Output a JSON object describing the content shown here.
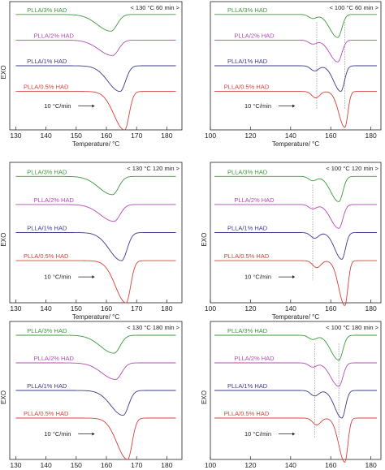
{
  "chart_data": [
    {
      "type": "line",
      "annotation": "< 130 °C  60 min >",
      "xlabel": "Temperature/ °C",
      "ylabel": "EXO",
      "xlim": [
        128,
        185
      ],
      "xticks": [
        130,
        140,
        150,
        160,
        170,
        180
      ],
      "rate_label": "10 °C/min",
      "series": [
        {
          "name": "PLLA/3% HAD",
          "color": "#3a9a3a",
          "baseline": 0.1,
          "melt_peaks": [
            {
              "t": 161.5,
              "depth": 0.13,
              "left_width": 4.5,
              "right_width": 2.0
            }
          ],
          "cc_dips": []
        },
        {
          "name": "PLLA/2% HAD",
          "color": "#b54ab5",
          "baseline": 0.3,
          "melt_peaks": [
            {
              "t": 162.0,
              "depth": 0.12,
              "left_width": 4.5,
              "right_width": 2.0
            }
          ],
          "cc_dips": []
        },
        {
          "name": "PLLA/1% HAD",
          "color": "#3a3a8c",
          "baseline": 0.5,
          "melt_peaks": [
            {
              "t": 164.5,
              "depth": 0.2,
              "left_width": 4.0,
              "right_width": 1.8
            }
          ],
          "cc_dips": []
        },
        {
          "name": "PLLA/0.5% HAD",
          "color": "#d9403a",
          "baseline": 0.7,
          "melt_peaks": [
            {
              "t": 166.0,
              "depth": 0.3,
              "left_width": 3.5,
              "right_width": 1.5
            }
          ],
          "cc_dips": []
        }
      ]
    },
    {
      "type": "line",
      "annotation": "< 100 °C  60 min >",
      "xlabel": "Temperature/ °C",
      "ylabel": "",
      "xlim": [
        100,
        185
      ],
      "xticks": [
        100,
        120,
        140,
        160,
        180
      ],
      "rate_label": "10 °C/min",
      "guide_temps": [
        153,
        167
      ],
      "series": [
        {
          "name": "PLLA/3% HAD",
          "color": "#3a9a3a",
          "baseline": 0.1,
          "melt_peaks": [
            {
              "t": 163.5,
              "depth": 0.18,
              "left_width": 4.0,
              "right_width": 2.0
            }
          ],
          "cc_dips": [
            {
              "t": 151,
              "depth": 0.03,
              "width": 2.0
            }
          ]
        },
        {
          "name": "PLLA/2% HAD",
          "color": "#b54ab5",
          "baseline": 0.3,
          "melt_peaks": [
            {
              "t": 163.5,
              "depth": 0.17,
              "left_width": 4.0,
              "right_width": 2.0
            }
          ],
          "cc_dips": [
            {
              "t": 151,
              "depth": 0.03,
              "width": 2.0
            }
          ]
        },
        {
          "name": "PLLA/1% HAD",
          "color": "#3a3a8c",
          "baseline": 0.5,
          "melt_peaks": [
            {
              "t": 165.0,
              "depth": 0.2,
              "left_width": 3.5,
              "right_width": 1.8
            }
          ],
          "cc_dips": [
            {
              "t": 152,
              "depth": 0.04,
              "width": 2.0
            }
          ]
        },
        {
          "name": "PLLA/0.5% HAD",
          "color": "#d9403a",
          "baseline": 0.7,
          "melt_peaks": [
            {
              "t": 167.0,
              "depth": 0.28,
              "left_width": 3.0,
              "right_width": 1.5
            }
          ],
          "cc_dips": [
            {
              "t": 152.5,
              "depth": 0.05,
              "width": 2.0
            }
          ]
        }
      ]
    },
    {
      "type": "line",
      "annotation": "< 130 °C  120 min >",
      "xlabel": "Temperature/ °C",
      "ylabel": "EXO",
      "xlim": [
        128,
        185
      ],
      "xticks": [
        130,
        140,
        150,
        160,
        170,
        180
      ],
      "rate_label": "10 °C/min",
      "series": [
        {
          "name": "PLLA/3% HAD",
          "color": "#3a9a3a",
          "baseline": 0.1,
          "melt_peaks": [
            {
              "t": 162.0,
              "depth": 0.13,
              "left_width": 4.5,
              "right_width": 2.0
            }
          ],
          "cc_dips": []
        },
        {
          "name": "PLLA/2% HAD",
          "color": "#b54ab5",
          "baseline": 0.3,
          "melt_peaks": [
            {
              "t": 162.5,
              "depth": 0.12,
              "left_width": 4.5,
              "right_width": 2.0
            }
          ],
          "cc_dips": []
        },
        {
          "name": "PLLA/1% HAD",
          "color": "#3a3a8c",
          "baseline": 0.5,
          "melt_peaks": [
            {
              "t": 165.0,
              "depth": 0.2,
              "left_width": 4.0,
              "right_width": 1.8
            }
          ],
          "cc_dips": []
        },
        {
          "name": "PLLA/0.5% HAD",
          "color": "#d9403a",
          "baseline": 0.7,
          "melt_peaks": [
            {
              "t": 166.5,
              "depth": 0.3,
              "left_width": 3.5,
              "right_width": 1.5
            }
          ],
          "cc_dips": []
        }
      ]
    },
    {
      "type": "line",
      "annotation": "< 100 °C  120 min >",
      "xlabel": "Temperature/ °C",
      "ylabel": "EXO",
      "xlim": [
        100,
        185
      ],
      "xticks": [
        100,
        120,
        140,
        160,
        180
      ],
      "rate_label": "10 °C/min",
      "guide_temps": [
        151
      ],
      "series": [
        {
          "name": "PLLA/3% HAD",
          "color": "#3a9a3a",
          "baseline": 0.1,
          "melt_peaks": [
            {
              "t": 164.0,
              "depth": 0.18,
              "left_width": 4.0,
              "right_width": 2.0
            }
          ],
          "cc_dips": [
            {
              "t": 151,
              "depth": 0.03,
              "width": 2.0
            }
          ]
        },
        {
          "name": "PLLA/2% HAD",
          "color": "#b54ab5",
          "baseline": 0.3,
          "melt_peaks": [
            {
              "t": 164.0,
              "depth": 0.17,
              "left_width": 4.0,
              "right_width": 2.0
            }
          ],
          "cc_dips": [
            {
              "t": 151,
              "depth": 0.03,
              "width": 2.0
            }
          ]
        },
        {
          "name": "PLLA/1% HAD",
          "color": "#3a3a8c",
          "baseline": 0.5,
          "melt_peaks": [
            {
              "t": 165.5,
              "depth": 0.19,
              "left_width": 3.5,
              "right_width": 1.8
            }
          ],
          "cc_dips": [
            {
              "t": 152,
              "depth": 0.04,
              "width": 2.0
            }
          ]
        },
        {
          "name": "PLLA/0.5% HAD",
          "color": "#d9403a",
          "baseline": 0.7,
          "melt_peaks": [
            {
              "t": 167.0,
              "depth": 0.32,
              "left_width": 3.0,
              "right_width": 1.5
            }
          ],
          "cc_dips": [
            {
              "t": 153,
              "depth": 0.05,
              "width": 2.0
            }
          ]
        }
      ]
    },
    {
      "type": "line",
      "annotation": "< 130 °C  180 min >",
      "xlabel": "Temperature/ °C",
      "ylabel": "EXO",
      "xlim": [
        128,
        185
      ],
      "xticks": [
        130,
        140,
        150,
        160,
        170,
        180
      ],
      "rate_label": "10 °C/min",
      "series": [
        {
          "name": "PLLA/3% HAD",
          "color": "#3a9a3a",
          "baseline": 0.1,
          "melt_peaks": [
            {
              "t": 162.5,
              "depth": 0.13,
              "left_width": 4.5,
              "right_width": 2.0
            }
          ],
          "cc_dips": []
        },
        {
          "name": "PLLA/2% HAD",
          "color": "#b54ab5",
          "baseline": 0.3,
          "melt_peaks": [
            {
              "t": 163.0,
              "depth": 0.12,
              "left_width": 4.5,
              "right_width": 2.0
            }
          ],
          "cc_dips": []
        },
        {
          "name": "PLLA/1% HAD",
          "color": "#3a3a8c",
          "baseline": 0.5,
          "melt_peaks": [
            {
              "t": 165.5,
              "depth": 0.18,
              "left_width": 4.0,
              "right_width": 1.8
            }
          ],
          "cc_dips": []
        },
        {
          "name": "PLLA/0.5% HAD",
          "color": "#d9403a",
          "baseline": 0.7,
          "melt_peaks": [
            {
              "t": 167.0,
              "depth": 0.3,
              "left_width": 3.5,
              "right_width": 1.5
            }
          ],
          "cc_dips": []
        }
      ]
    },
    {
      "type": "line",
      "annotation": "< 100 °C  180 min >",
      "xlabel": "Temperature/ °C",
      "ylabel": "EXO",
      "xlim": [
        100,
        185
      ],
      "xticks": [
        100,
        120,
        140,
        160,
        180
      ],
      "rate_label": "10 °C/min",
      "guide_temps": [
        152,
        164
      ],
      "series": [
        {
          "name": "PLLA/3% HAD",
          "color": "#3a9a3a",
          "baseline": 0.1,
          "melt_peaks": [
            {
              "t": 164.0,
              "depth": 0.18,
              "left_width": 4.0,
              "right_width": 2.0
            }
          ],
          "cc_dips": [
            {
              "t": 151,
              "depth": 0.03,
              "width": 2.0
            }
          ]
        },
        {
          "name": "PLLA/2% HAD",
          "color": "#b54ab5",
          "baseline": 0.3,
          "melt_peaks": [
            {
              "t": 164.0,
              "depth": 0.17,
              "left_width": 4.0,
              "right_width": 2.0
            }
          ],
          "cc_dips": [
            {
              "t": 151,
              "depth": 0.03,
              "width": 2.0
            }
          ]
        },
        {
          "name": "PLLA/1% HAD",
          "color": "#3a3a8c",
          "baseline": 0.5,
          "melt_peaks": [
            {
              "t": 165.5,
              "depth": 0.2,
              "left_width": 3.5,
              "right_width": 1.8
            }
          ],
          "cc_dips": [
            {
              "t": 152,
              "depth": 0.04,
              "width": 2.0
            }
          ]
        },
        {
          "name": "PLLA/0.5% HAD",
          "color": "#d9403a",
          "baseline": 0.7,
          "melt_peaks": [
            {
              "t": 167.0,
              "depth": 0.32,
              "left_width": 3.0,
              "right_width": 1.5
            }
          ],
          "cc_dips": [
            {
              "t": 153,
              "depth": 0.05,
              "width": 2.0
            }
          ]
        }
      ]
    }
  ]
}
